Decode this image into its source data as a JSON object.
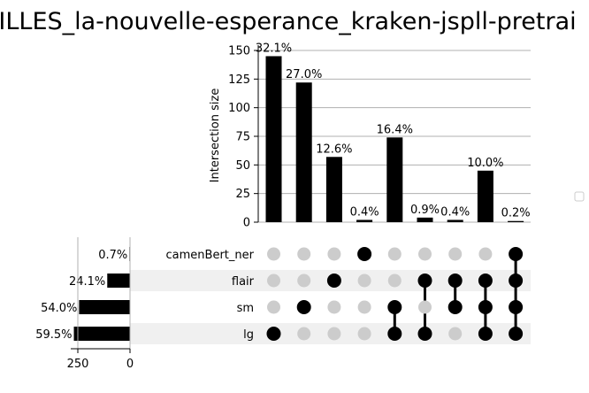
{
  "chart_data": {
    "type": "bar",
    "subtype": "upset",
    "title": "ILLES_la-nouvelle-esperance_kraken-jspll-pretrai",
    "ylabel": "Intersection size",
    "ylim": [
      0,
      155
    ],
    "yticks": [
      0,
      25,
      50,
      75,
      100,
      125,
      150
    ],
    "grid": true,
    "sets": [
      "camenBert_ner",
      "flair",
      "sm",
      "lg"
    ],
    "set_labels": [
      "0.7%",
      "24.1%",
      "54.0%",
      "59.5%"
    ],
    "set_sizes": [
      3,
      109,
      244,
      269
    ],
    "set_size_ticks": [
      250,
      0
    ],
    "set_size_max": 280,
    "intersections": [
      {
        "value": 145,
        "label": "32.1%",
        "members": [
          false,
          false,
          false,
          true
        ]
      },
      {
        "value": 122,
        "label": "27.0%",
        "members": [
          false,
          false,
          true,
          false
        ]
      },
      {
        "value": 57,
        "label": "12.6%",
        "members": [
          false,
          true,
          false,
          false
        ]
      },
      {
        "value": 2,
        "label": "0.4%",
        "members": [
          true,
          false,
          false,
          false
        ]
      },
      {
        "value": 74,
        "label": "16.4%",
        "members": [
          false,
          false,
          true,
          true
        ]
      },
      {
        "value": 4,
        "label": "0.9%",
        "members": [
          false,
          true,
          false,
          true
        ]
      },
      {
        "value": 2,
        "label": "0.4%",
        "members": [
          false,
          true,
          true,
          false
        ]
      },
      {
        "value": 45,
        "label": "10.0%",
        "members": [
          false,
          true,
          true,
          true
        ]
      },
      {
        "value": 1,
        "label": "0.2%",
        "members": [
          true,
          true,
          true,
          true
        ]
      }
    ],
    "legend": {
      "placement": "right",
      "entries": []
    },
    "colors": {
      "bar": "#000000",
      "active_dot": "#000000",
      "inactive_dot": "#cccccc",
      "stripe": "#f0f0f0",
      "grid": "#b0b0b0"
    }
  }
}
